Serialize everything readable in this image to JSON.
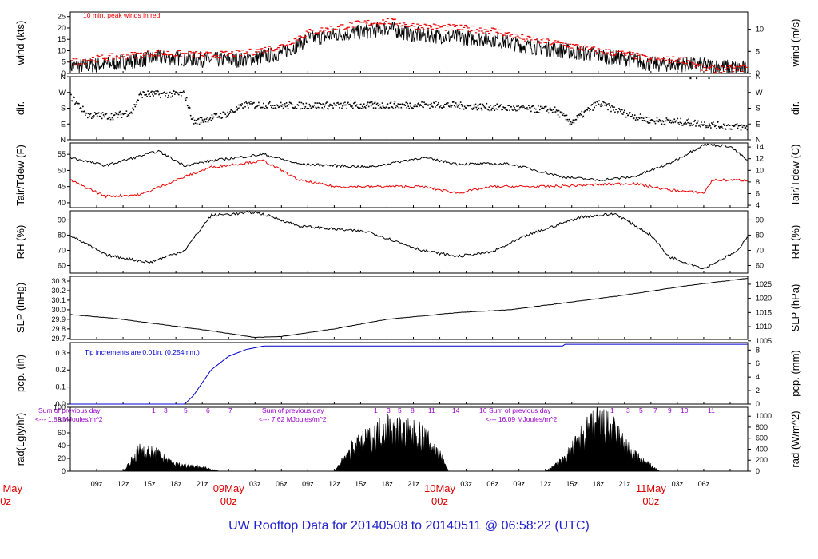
{
  "footer_title": "UW Rooftop Data for 20140508  to  20140511 @ 06:58:22  (UTC)",
  "colors": {
    "axis": "#000000",
    "red": "#ee0000",
    "blue": "#0000cc",
    "purple": "#9900cc",
    "title_blue": "#2222cc",
    "date_red": "#dd0000"
  },
  "chart_data": {
    "type": "line",
    "time_axis": {
      "start": "2014-05-08 06:00 UTC",
      "end": "2014-05-11 07:00 UTC",
      "tick_labels": [
        "09z",
        "12z",
        "15z",
        "18z",
        "21z",
        "03z",
        "06z",
        "09z",
        "12z",
        "15z",
        "18z",
        "21z",
        "03z",
        "06z",
        "09z",
        "12z",
        "15z",
        "18z",
        "21z",
        "03z",
        "06z"
      ],
      "date_labels": [
        {
          "day": "May",
          "hour": "00z"
        },
        {
          "day": "09May",
          "hour": "00z"
        },
        {
          "day": "10May",
          "hour": "00z"
        },
        {
          "day": "11May",
          "hour": "00z"
        }
      ]
    },
    "panels": [
      {
        "id": "wind",
        "ylabel_left": "wind (kts)",
        "ylabel_right": "wind (m/s)",
        "ylim": [
          0,
          27
        ],
        "left_ticks": [
          "0",
          "5",
          "10",
          "15",
          "20",
          "25"
        ],
        "right_ylim": [
          0,
          13.9
        ],
        "right_ticks": [
          "0",
          "5",
          "10"
        ],
        "annotation": "10 min. peak winds in red",
        "series": [
          {
            "kind": "speed",
            "knots": [
              [
                0,
                3
              ],
              [
                4,
                4
              ],
              [
                10,
                7
              ],
              [
                16,
                6
              ],
              [
                20,
                6
              ],
              [
                24,
                9
              ],
              [
                27,
                15
              ],
              [
                30,
                17
              ],
              [
                33,
                18
              ],
              [
                36,
                20
              ],
              [
                39,
                17
              ],
              [
                44,
                16
              ],
              [
                48,
                15
              ],
              [
                52,
                12
              ],
              [
                56,
                10
              ],
              [
                60,
                8
              ],
              [
                64,
                6
              ],
              [
                66,
                4
              ],
              [
                70,
                4
              ],
              [
                74,
                3
              ],
              [
                77,
                2
              ]
            ]
          },
          {
            "kind": "peak",
            "knots": [
              [
                0,
                5
              ],
              [
                4,
                7
              ],
              [
                10,
                9
              ],
              [
                16,
                8
              ],
              [
                20,
                9
              ],
              [
                24,
                12
              ],
              [
                27,
                18
              ],
              [
                30,
                20
              ],
              [
                33,
                22
              ],
              [
                36,
                23
              ],
              [
                39,
                21
              ],
              [
                44,
                20
              ],
              [
                48,
                19
              ],
              [
                52,
                15
              ],
              [
                56,
                13
              ],
              [
                60,
                10
              ],
              [
                64,
                8
              ],
              [
                66,
                6
              ],
              [
                70,
                6
              ],
              [
                72,
                2
              ],
              [
                76,
                2
              ],
              [
                77,
                3
              ]
            ]
          }
        ]
      },
      {
        "id": "dir",
        "ylabel_left": "dir.",
        "ylabel_right": "dir.",
        "ylim": [
          0,
          360
        ],
        "left_ticks": [
          "N",
          "E",
          "S",
          "W",
          "N"
        ],
        "right_ticks": [
          "N",
          "E",
          "S",
          "W",
          "N"
        ],
        "series": [
          {
            "kind": "direction",
            "knots": [
              [
                0,
                250
              ],
              [
                2,
                140
              ],
              [
                5,
                135
              ],
              [
                7,
                160
              ],
              [
                8,
                260
              ],
              [
                13,
                260
              ],
              [
                14,
                100
              ],
              [
                18,
                150
              ],
              [
                20,
                200
              ],
              [
                24,
                195
              ],
              [
                34,
                195
              ],
              [
                42,
                200
              ],
              [
                50,
                180
              ],
              [
                55,
                170
              ],
              [
                57,
                100
              ],
              [
                60,
                210
              ],
              [
                63,
                150
              ],
              [
                66,
                110
              ],
              [
                70,
                100
              ],
              [
                74,
                80
              ],
              [
                77,
                70
              ]
            ]
          }
        ]
      },
      {
        "id": "temp",
        "ylabel_left": "Tair/Tdew (F)",
        "ylabel_right": "Tair/Tdew (C)",
        "ylim": [
          38.5,
          58.5
        ],
        "left_ticks": [
          "40",
          "45",
          "50",
          "55"
        ],
        "right_ylim": [
          3.6,
          14.7
        ],
        "right_ticks": [
          "4",
          "6",
          "8",
          "10",
          "12",
          "14"
        ],
        "series": [
          {
            "name": "Tair",
            "knots": [
              [
                0,
                54
              ],
              [
                4,
                51.5
              ],
              [
                10,
                56
              ],
              [
                13,
                51.5
              ],
              [
                16,
                53
              ],
              [
                22,
                55
              ],
              [
                26,
                52
              ],
              [
                34,
                51
              ],
              [
                40,
                54
              ],
              [
                44,
                52
              ],
              [
                50,
                52
              ],
              [
                56,
                48
              ],
              [
                60,
                47
              ],
              [
                64,
                48
              ],
              [
                68,
                52
              ],
              [
                72,
                58
              ],
              [
                75,
                57.5
              ],
              [
                77,
                53
              ]
            ]
          },
          {
            "name": "Tdew",
            "knots": [
              [
                0,
                47
              ],
              [
                4,
                42
              ],
              [
                8,
                42.5
              ],
              [
                12,
                47
              ],
              [
                16,
                51
              ],
              [
                22,
                53
              ],
              [
                26,
                47
              ],
              [
                30,
                45
              ],
              [
                40,
                45
              ],
              [
                44,
                43
              ],
              [
                48,
                45
              ],
              [
                54,
                45
              ],
              [
                64,
                46
              ],
              [
                68,
                44
              ],
              [
                72,
                43
              ],
              [
                73,
                47
              ],
              [
                77,
                47
              ]
            ]
          }
        ]
      },
      {
        "id": "rh",
        "ylabel_left": "RH (%)",
        "ylabel_right": "RH (%)",
        "ylim": [
          55,
          96
        ],
        "left_ticks": [
          "60",
          "70",
          "80",
          "90"
        ],
        "right_ticks": [
          "60",
          "70",
          "80",
          "90"
        ],
        "series": [
          {
            "name": "RH",
            "knots": [
              [
                0,
                80
              ],
              [
                4,
                67
              ],
              [
                9,
                62
              ],
              [
                13,
                70
              ],
              [
                16,
                93
              ],
              [
                21,
                95
              ],
              [
                23,
                92
              ],
              [
                26,
                86
              ],
              [
                34,
                82
              ],
              [
                40,
                70
              ],
              [
                44,
                66
              ],
              [
                48,
                69
              ],
              [
                52,
                80
              ],
              [
                58,
                92
              ],
              [
                62,
                94
              ],
              [
                66,
                80
              ],
              [
                68,
                66
              ],
              [
                72,
                58
              ],
              [
                76,
                70
              ],
              [
                77,
                80
              ]
            ]
          }
        ]
      },
      {
        "id": "slp",
        "ylabel_left": "SLP (inHg)",
        "ylabel_right": "SLP (hPa)",
        "ylim": [
          29.69,
          30.35
        ],
        "left_ticks": [
          "29.7",
          "29.8",
          "29.9",
          "30.0",
          "30.1",
          "30.2",
          "30.3"
        ],
        "right_ylim": [
          1005.5,
          1027.8
        ],
        "right_ticks": [
          "1005",
          "1010",
          "1015",
          "1020",
          "1025"
        ],
        "series": [
          {
            "name": "SLP",
            "knots": [
              [
                0,
                29.95
              ],
              [
                5,
                29.91
              ],
              [
                10,
                29.85
              ],
              [
                16,
                29.78
              ],
              [
                21,
                29.71
              ],
              [
                24,
                29.72
              ],
              [
                30,
                29.8
              ],
              [
                36,
                29.9
              ],
              [
                44,
                29.97
              ],
              [
                50,
                30.0
              ],
              [
                56,
                30.07
              ],
              [
                62,
                30.14
              ],
              [
                70,
                30.25
              ],
              [
                77,
                30.33
              ]
            ]
          }
        ]
      },
      {
        "id": "pcp",
        "ylabel_left": "pcp. (in)",
        "ylabel_right": "pcp. (mm)",
        "ylim": [
          0,
          0.36
        ],
        "left_ticks": [
          "0.0",
          "0.1",
          "0.2",
          "0.3"
        ],
        "right_ylim": [
          0,
          9.1
        ],
        "right_ticks": [
          "0",
          "2",
          "4",
          "6",
          "8"
        ],
        "annotation": "Tip increments are 0.01in. (0.254mm.)",
        "series": [
          {
            "name": "precip",
            "knots": [
              [
                0,
                0
              ],
              [
                13,
                0
              ],
              [
                14,
                0.05
              ],
              [
                16,
                0.2
              ],
              [
                18,
                0.28
              ],
              [
                20,
                0.32
              ],
              [
                22,
                0.34
              ],
              [
                56,
                0.34
              ],
              [
                56.2,
                0.35
              ],
              [
                77,
                0.35
              ]
            ]
          }
        ]
      },
      {
        "id": "rad",
        "ylabel_left": "rad(Lgly/hr)",
        "ylabel_right": "rad (W/m^2)",
        "ylim": [
          0,
          100
        ],
        "left_ticks": [
          "0",
          "20",
          "40",
          "60",
          "80",
          "100"
        ],
        "right_ylim": [
          0,
          1163
        ],
        "right_ticks": [
          "0",
          "200",
          "400",
          "600",
          "800",
          "1000"
        ],
        "annotations": [
          {
            "line1": "Sum of previous day",
            "line2": "<--- 1.80 MJoules/m^2"
          },
          {
            "line1": "Sum of previous day",
            "line2": "<--- 7.62 MJoules/m^2"
          },
          {
            "line1": "Sum of previous day",
            "line2": "<--- 16.09 MJoules/m^2"
          }
        ],
        "hour_labels": [
          [
            "1",
            "3",
            "5",
            "6",
            "7"
          ],
          [
            "1",
            "3",
            "5",
            "8",
            "11",
            "14",
            "16"
          ],
          [
            "1",
            "3",
            "5",
            "7",
            "9",
            "10",
            "11"
          ]
        ],
        "series": [
          {
            "name": "day1",
            "knots": [
              [
                6,
                0
              ],
              [
                8,
                40
              ],
              [
                10,
                30
              ],
              [
                12,
                12
              ],
              [
                14,
                10
              ],
              [
                16,
                4
              ],
              [
                17,
                0
              ]
            ]
          },
          {
            "name": "day2",
            "knots": [
              [
                30,
                0
              ],
              [
                32,
                40
              ],
              [
                34,
                60
              ],
              [
                36,
                80
              ],
              [
                38,
                70
              ],
              [
                40,
                65
              ],
              [
                42,
                30
              ],
              [
                43,
                0
              ]
            ]
          },
          {
            "name": "day3",
            "knots": [
              [
                54,
                0
              ],
              [
                56,
                20
              ],
              [
                58,
                60
              ],
              [
                60,
                90
              ],
              [
                62,
                70
              ],
              [
                64,
                30
              ],
              [
                66,
                10
              ],
              [
                67,
                0
              ]
            ]
          }
        ]
      }
    ]
  }
}
